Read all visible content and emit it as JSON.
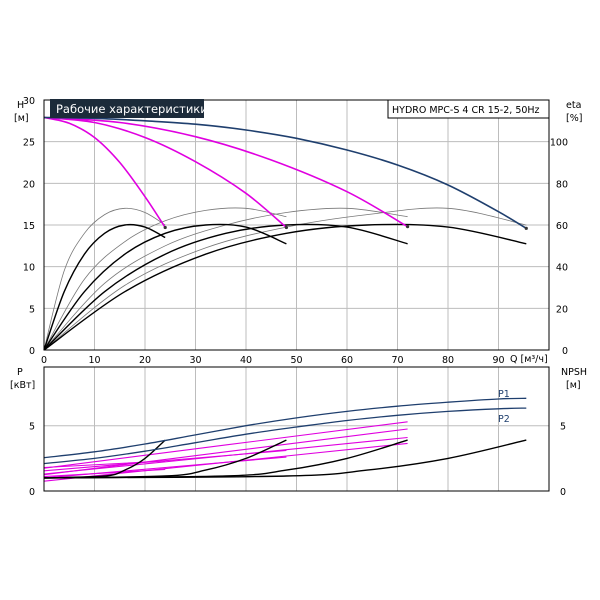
{
  "chart_data": [
    {
      "type": "line",
      "title": "Рабочие характеристики",
      "subtitle": "HYDRO MPC-S 4 CR 15-2, 50Hz",
      "xlabel": "Q [м³/ч]",
      "x_unit": "Q [м³/ч]",
      "ylabel_left": "H",
      "ylabel_left_unit": "[м]",
      "ylabel_right": "eta",
      "ylabel_right_unit": "[%]",
      "xlim": [
        0,
        100
      ],
      "ylim_left": [
        0,
        30
      ],
      "ylim_right": [
        0,
        120
      ],
      "xticks": [
        "0",
        "10",
        "20",
        "30",
        "40",
        "50",
        "60",
        "70",
        "80",
        "90"
      ],
      "yticks_left": [
        "0",
        "5",
        "10",
        "15",
        "20",
        "25",
        "30"
      ],
      "yticks_right": [
        "0",
        "20",
        "40",
        "60",
        "80",
        "100"
      ],
      "grid": true,
      "colors": {
        "pump_curve": "#1f3f6e",
        "system_curve": "#e000e0",
        "eta": "#000000",
        "eta_thin": "#777777",
        "title_bg": "#1c2b3a"
      },
      "series": [
        {
          "kind": "H",
          "x": [
            0,
            10,
            20,
            30,
            40,
            50,
            60,
            70,
            80,
            90,
            95.5
          ],
          "y": [
            27.9,
            27.8,
            27.5,
            27.1,
            26.4,
            25.4,
            24.0,
            22.2,
            19.8,
            16.6,
            14.6
          ]
        },
        {
          "kind": "system",
          "x": [
            0,
            5,
            10,
            15,
            20,
            24
          ],
          "y": [
            27.9,
            27.2,
            25.5,
            22.5,
            18.4,
            14.7
          ]
        },
        {
          "kind": "system",
          "x": [
            0,
            10,
            20,
            30,
            40,
            48
          ],
          "y": [
            27.9,
            27.3,
            25.5,
            22.6,
            18.8,
            14.7
          ]
        },
        {
          "kind": "system",
          "x": [
            0,
            15,
            30,
            45,
            60,
            72
          ],
          "y": [
            27.9,
            27.3,
            25.6,
            22.8,
            19.0,
            14.8
          ]
        },
        {
          "kind": "eta",
          "x": [
            0,
            4,
            8,
            12,
            16,
            20,
            24
          ],
          "y": [
            0,
            28,
            46,
            56,
            60,
            59,
            54
          ]
        },
        {
          "kind": "eta",
          "x": [
            0,
            8,
            16,
            24,
            32,
            40,
            48
          ],
          "y": [
            0,
            28,
            46,
            56,
            60,
            59,
            51
          ]
        },
        {
          "kind": "eta",
          "x": [
            0,
            12,
            24,
            36,
            48,
            60,
            72
          ],
          "y": [
            0,
            28,
            46,
            56,
            60,
            59,
            51
          ]
        },
        {
          "kind": "eta",
          "x": [
            0,
            16,
            32,
            48,
            64,
            80,
            95.5
          ],
          "y": [
            0,
            28,
            46,
            56,
            60,
            59,
            51
          ]
        },
        {
          "kind": "eta_thin",
          "x": [
            0,
            4,
            8,
            12,
            16,
            20,
            24
          ],
          "y": [
            0,
            38,
            56,
            65,
            68,
            66,
            60
          ]
        },
        {
          "kind": "eta_thin",
          "x": [
            0,
            8,
            16,
            24,
            32,
            40,
            48
          ],
          "y": [
            0,
            34,
            52,
            62,
            67,
            68,
            64
          ]
        },
        {
          "kind": "eta_thin",
          "x": [
            0,
            12,
            24,
            36,
            48,
            60,
            72
          ],
          "y": [
            0,
            32,
            50,
            60,
            66,
            68,
            64
          ]
        },
        {
          "kind": "eta_thin",
          "x": [
            0,
            16,
            32,
            48,
            64,
            80,
            95.5
          ],
          "y": [
            0,
            31,
            49,
            59,
            65,
            68,
            60
          ]
        }
      ]
    },
    {
      "type": "line",
      "xlabel": "",
      "ylabel_left": "P",
      "ylabel_left_unit": "[кВт]",
      "ylabel_right": "NPSH",
      "ylabel_right_unit": "[м]",
      "xlim": [
        0,
        100
      ],
      "ylim_left": [
        0,
        9.5
      ],
      "ylim_right": [
        0,
        9.5
      ],
      "yticks_left": [
        "0",
        "5"
      ],
      "yticks_right": [
        "0",
        "5"
      ],
      "grid": true,
      "series": [
        {
          "name": "P1",
          "kind": "P",
          "x": [
            0,
            10,
            20,
            30,
            40,
            50,
            60,
            70,
            80,
            90,
            95.5
          ],
          "y": [
            2.55,
            3.0,
            3.6,
            4.3,
            5.0,
            5.6,
            6.1,
            6.5,
            6.8,
            7.05,
            7.1
          ]
        },
        {
          "name": "P2",
          "kind": "P",
          "x": [
            0,
            10,
            20,
            30,
            40,
            50,
            60,
            70,
            80,
            90,
            95.5
          ],
          "y": [
            2.1,
            2.5,
            3.05,
            3.7,
            4.35,
            4.9,
            5.4,
            5.8,
            6.1,
            6.3,
            6.35
          ]
        },
        {
          "kind": "P_sys",
          "x": [
            0,
            24
          ],
          "y": [
            1.8,
            2.3
          ]
        },
        {
          "kind": "P_sys",
          "x": [
            0,
            24
          ],
          "y": [
            1.1,
            1.65
          ]
        },
        {
          "kind": "P_sys",
          "x": [
            0,
            48
          ],
          "y": [
            1.55,
            3.1
          ]
        },
        {
          "kind": "P_sys",
          "x": [
            0,
            48
          ],
          "y": [
            1.0,
            2.6
          ]
        },
        {
          "kind": "P_sys",
          "x": [
            0,
            72
          ],
          "y": [
            1.3,
            4.1
          ]
        },
        {
          "kind": "P_sys",
          "x": [
            0,
            72
          ],
          "y": [
            0.75,
            3.65
          ]
        },
        {
          "kind": "P_sys",
          "x": [
            0,
            72
          ],
          "y": [
            1.75,
            5.3
          ]
        },
        {
          "kind": "P_sys",
          "x": [
            0,
            72
          ],
          "y": [
            1.25,
            4.75
          ]
        },
        {
          "kind": "NPSH",
          "x": [
            0,
            12,
            16,
            20,
            24
          ],
          "y": [
            1.0,
            1.15,
            1.6,
            2.5,
            3.9
          ]
        },
        {
          "kind": "NPSH",
          "x": [
            0,
            24,
            32,
            40,
            48
          ],
          "y": [
            1.0,
            1.15,
            1.6,
            2.5,
            3.9
          ]
        },
        {
          "kind": "NPSH",
          "x": [
            0,
            36,
            48,
            60,
            72
          ],
          "y": [
            1.0,
            1.15,
            1.6,
            2.5,
            3.9
          ]
        },
        {
          "kind": "NPSH",
          "x": [
            0,
            48,
            64,
            80,
            95.5
          ],
          "y": [
            1.0,
            1.15,
            1.6,
            2.5,
            3.9
          ]
        }
      ]
    }
  ]
}
